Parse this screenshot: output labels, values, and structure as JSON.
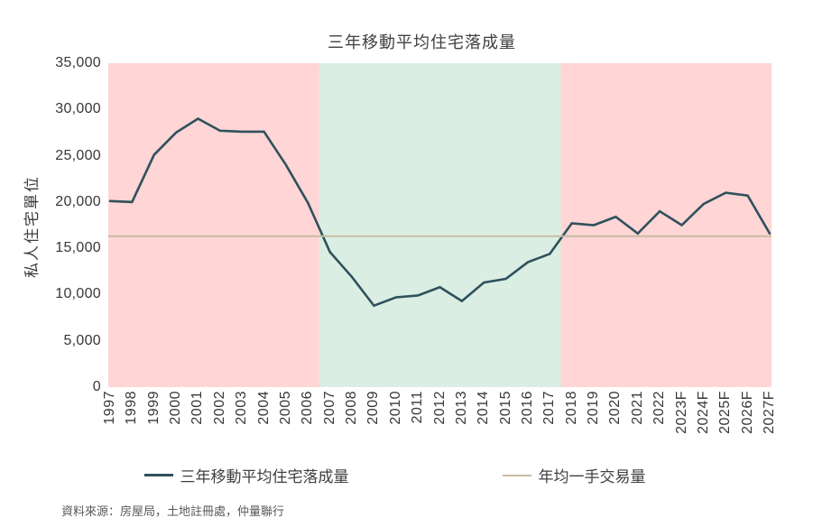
{
  "title": "三年移動平均住宅落成量",
  "source_note": "資料來源：房屋局，土地註冊處，仲量聯行",
  "legend": {
    "items": [
      {
        "label": "三年移動平均住宅落成量",
        "color": "#2F515C"
      },
      {
        "label": "年均一手交易量",
        "color": "#C8BCA5"
      }
    ]
  },
  "chart_data": {
    "type": "line",
    "title": "三年移動平均住宅落成量",
    "ylabel": "私人住宅單位",
    "xlabel": "",
    "ylim": [
      0,
      35000
    ],
    "ytick_step": 5000,
    "grid": false,
    "legend_position": "bottom",
    "categories": [
      "1997",
      "1998",
      "1999",
      "2000",
      "2001",
      "2002",
      "2003",
      "2004",
      "2005",
      "2006",
      "2007",
      "2008",
      "2009",
      "2010",
      "2011",
      "2012",
      "2013",
      "2014",
      "2015",
      "2016",
      "2017",
      "2018",
      "2019",
      "2020",
      "2021",
      "2022",
      "2023F",
      "2024F",
      "2025F",
      "2026F",
      "2027F"
    ],
    "series": [
      {
        "name": "三年移動平均住宅落成量",
        "type": "line",
        "color": "#2F515C",
        "values": [
          20100,
          20000,
          25100,
          27500,
          29000,
          27700,
          27600,
          27600,
          24000,
          19900,
          14600,
          11900,
          8800,
          9700,
          9900,
          10800,
          9300,
          11300,
          11700,
          13500,
          14400,
          17700,
          17500,
          18400,
          16600,
          19000,
          17500,
          19800,
          21000,
          20700,
          16600
        ]
      },
      {
        "name": "年均一手交易量",
        "type": "constant",
        "color": "#C8BCA5",
        "value": 16300
      }
    ],
    "background_bands": [
      {
        "from": "1997",
        "to": "2006",
        "color": "#FFD5D5"
      },
      {
        "from": "2007",
        "to": "2017",
        "color": "#DAEEE3"
      },
      {
        "from": "2018",
        "to": "2027F",
        "color": "#FFD5D5"
      }
    ]
  }
}
